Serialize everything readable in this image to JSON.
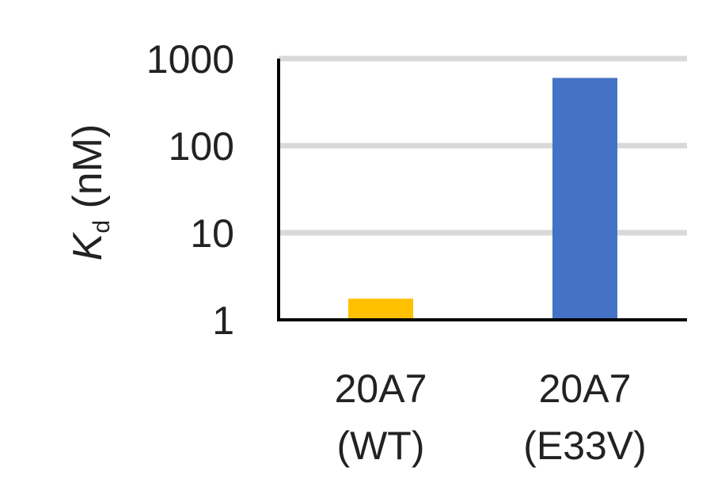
{
  "chart_data": {
    "type": "bar",
    "yscale": "log",
    "ylim": [
      1,
      1000
    ],
    "yticks": [
      1,
      10,
      100,
      1000
    ],
    "ytick_labels": [
      "1",
      "10",
      "100",
      "1000"
    ],
    "ylabel": {
      "symbol": "K",
      "subscript": "d",
      "unit": " (nM)"
    },
    "grid": true,
    "categories": [
      {
        "line1": "20A7",
        "line2": "(WT)"
      },
      {
        "line1": "20A7",
        "line2": "(E33V)"
      }
    ],
    "values": [
      1.75,
      600
    ],
    "colors": [
      "#FFC000",
      "#4472C4"
    ],
    "grid_color": "#D9D9D9",
    "axis_color": "#000000"
  }
}
